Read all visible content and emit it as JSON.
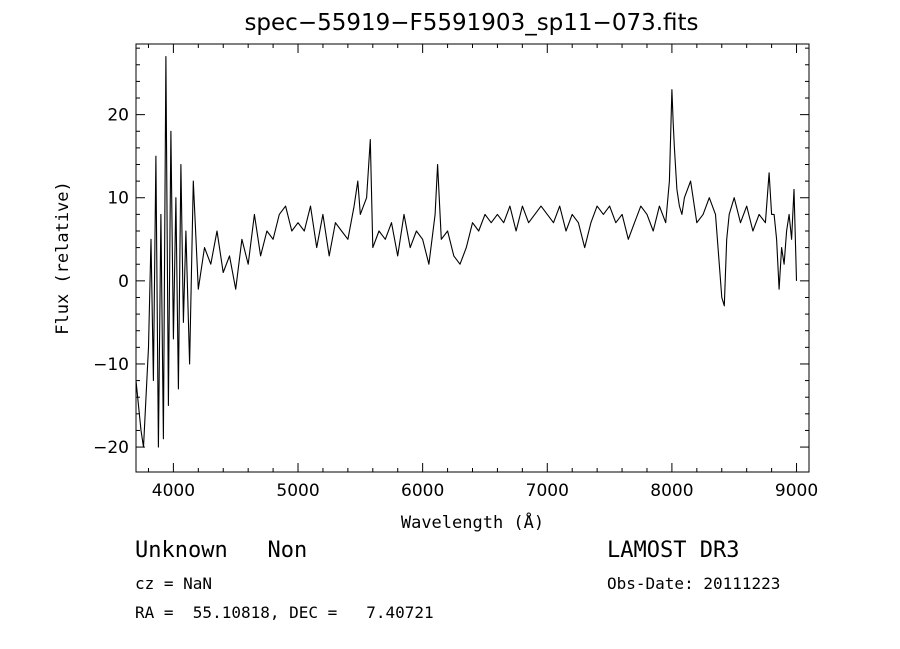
{
  "chart_data": {
    "type": "line",
    "title": "spec−55919−F5591903_sp11−073.fits",
    "xlabel": "Wavelength (Å)",
    "ylabel": "Flux (relative)",
    "xlim": [
      3700,
      9100
    ],
    "ylim": [
      -23,
      28.5
    ],
    "x_ticks": [
      4000,
      5000,
      6000,
      7000,
      8000,
      9000
    ],
    "y_ticks": [
      -20,
      -10,
      0,
      10,
      20
    ],
    "x_tick_labels": [
      "4000",
      "5000",
      "6000",
      "7000",
      "8000",
      "9000"
    ],
    "y_tick_labels": [
      "−20",
      "−10",
      "0",
      "10",
      "20"
    ],
    "grid": false,
    "series": [
      {
        "x": [
          3700,
          3720,
          3740,
          3760,
          3780,
          3800,
          3820,
          3840,
          3860,
          3880,
          3900,
          3920,
          3940,
          3960,
          3980,
          4000,
          4020,
          4040,
          4060,
          4080,
          4100,
          4130,
          4160,
          4200,
          4250,
          4300,
          4350,
          4400,
          4450,
          4500,
          4550,
          4600,
          4650,
          4700,
          4750,
          4800,
          4850,
          4900,
          4950,
          5000,
          5050,
          5100,
          5150,
          5200,
          5250,
          5300,
          5350,
          5400,
          5450,
          5480,
          5500,
          5550,
          5580,
          5600,
          5650,
          5700,
          5750,
          5800,
          5850,
          5900,
          5950,
          6000,
          6050,
          6100,
          6120,
          6150,
          6200,
          6250,
          6300,
          6350,
          6400,
          6450,
          6500,
          6550,
          6600,
          6650,
          6700,
          6750,
          6800,
          6850,
          6900,
          6950,
          7000,
          7050,
          7100,
          7150,
          7200,
          7250,
          7300,
          7350,
          7400,
          7450,
          7500,
          7550,
          7600,
          7650,
          7700,
          7750,
          7800,
          7850,
          7900,
          7950,
          7980,
          8000,
          8010,
          8020,
          8040,
          8060,
          8080,
          8100,
          8150,
          8200,
          8250,
          8300,
          8350,
          8400,
          8420,
          8440,
          8460,
          8500,
          8550,
          8600,
          8650,
          8700,
          8750,
          8780,
          8800,
          8820,
          8840,
          8860,
          8880,
          8900,
          8920,
          8940,
          8960,
          8980,
          9000
        ],
        "y": [
          -12,
          -15,
          -18,
          -20,
          -14,
          -8,
          5,
          -12,
          15,
          -20,
          8,
          -19,
          27,
          -15,
          18,
          -7,
          10,
          -13,
          14,
          -5,
          6,
          -10,
          12,
          -1,
          4,
          2,
          6,
          1,
          3,
          -1,
          5,
          2,
          8,
          3,
          6,
          5,
          8,
          9,
          6,
          7,
          6,
          9,
          4,
          8,
          3,
          7,
          6,
          5,
          9,
          12,
          8,
          10,
          17,
          4,
          6,
          5,
          7,
          3,
          8,
          4,
          6,
          5,
          2,
          8,
          14,
          5,
          6,
          3,
          2,
          4,
          7,
          6,
          8,
          7,
          8,
          7,
          9,
          6,
          9,
          7,
          8,
          9,
          8,
          7,
          9,
          6,
          8,
          7,
          4,
          7,
          9,
          8,
          9,
          7,
          8,
          5,
          7,
          9,
          8,
          6,
          9,
          7,
          12,
          23,
          19,
          16,
          11,
          9,
          8,
          10,
          12,
          7,
          8,
          10,
          8,
          -2,
          -3,
          5,
          8,
          10,
          7,
          9,
          6,
          8,
          7,
          13,
          8,
          8,
          5,
          -1,
          4,
          2,
          6,
          8,
          5,
          11,
          0
        ]
      }
    ]
  },
  "footer": {
    "object_class": "Unknown   Non",
    "survey": "LAMOST DR3",
    "cz": "cz = NaN",
    "obs_date": "Obs-Date: 20111223",
    "radec": "RA =  55.10818, DEC =   7.40721"
  }
}
